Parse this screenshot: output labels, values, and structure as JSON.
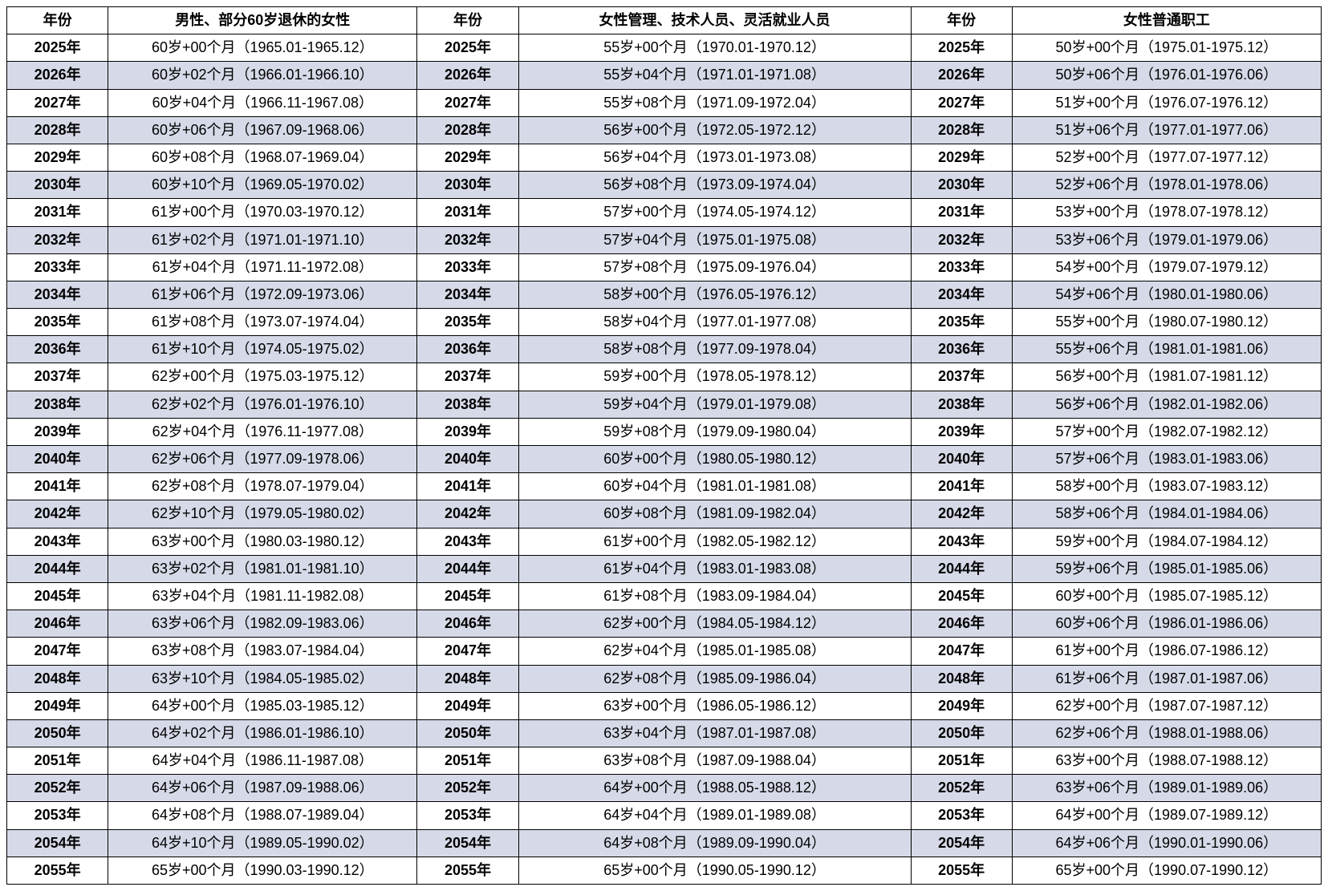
{
  "table": {
    "type": "table",
    "colors": {
      "border": "#000000",
      "bg_even": "#ffffff",
      "bg_odd": "#d6dae8",
      "text": "#000000"
    },
    "font": {
      "family": "Microsoft YaHei",
      "size_pt": 14,
      "header_weight": "bold"
    },
    "headers": [
      "年份",
      "男性、部分60岁退休的女性",
      "年份",
      "女性管理、技术人员、灵活就业人员",
      "年份",
      "女性普通职工"
    ],
    "col_widths_pct": [
      7,
      22,
      7,
      28,
      7,
      22
    ],
    "rows": [
      [
        "2025年",
        "60岁+00个月（1965.01-1965.12）",
        "2025年",
        "55岁+00个月（1970.01-1970.12）",
        "2025年",
        "50岁+00个月（1975.01-1975.12）"
      ],
      [
        "2026年",
        "60岁+02个月（1966.01-1966.10）",
        "2026年",
        "55岁+04个月（1971.01-1971.08）",
        "2026年",
        "50岁+06个月（1976.01-1976.06）"
      ],
      [
        "2027年",
        "60岁+04个月（1966.11-1967.08）",
        "2027年",
        "55岁+08个月（1971.09-1972.04）",
        "2027年",
        "51岁+00个月（1976.07-1976.12）"
      ],
      [
        "2028年",
        "60岁+06个月（1967.09-1968.06）",
        "2028年",
        "56岁+00个月（1972.05-1972.12）",
        "2028年",
        "51岁+06个月（1977.01-1977.06）"
      ],
      [
        "2029年",
        "60岁+08个月（1968.07-1969.04）",
        "2029年",
        "56岁+04个月（1973.01-1973.08）",
        "2029年",
        "52岁+00个月（1977.07-1977.12）"
      ],
      [
        "2030年",
        "60岁+10个月（1969.05-1970.02）",
        "2030年",
        "56岁+08个月（1973.09-1974.04）",
        "2030年",
        "52岁+06个月（1978.01-1978.06）"
      ],
      [
        "2031年",
        "61岁+00个月（1970.03-1970.12）",
        "2031年",
        "57岁+00个月（1974.05-1974.12）",
        "2031年",
        "53岁+00个月（1978.07-1978.12）"
      ],
      [
        "2032年",
        "61岁+02个月（1971.01-1971.10）",
        "2032年",
        "57岁+04个月（1975.01-1975.08）",
        "2032年",
        "53岁+06个月（1979.01-1979.06）"
      ],
      [
        "2033年",
        "61岁+04个月（1971.11-1972.08）",
        "2033年",
        "57岁+08个月（1975.09-1976.04）",
        "2033年",
        "54岁+00个月（1979.07-1979.12）"
      ],
      [
        "2034年",
        "61岁+06个月（1972.09-1973.06）",
        "2034年",
        "58岁+00个月（1976.05-1976.12）",
        "2034年",
        "54岁+06个月（1980.01-1980.06）"
      ],
      [
        "2035年",
        "61岁+08个月（1973.07-1974.04）",
        "2035年",
        "58岁+04个月（1977.01-1977.08）",
        "2035年",
        "55岁+00个月（1980.07-1980.12）"
      ],
      [
        "2036年",
        "61岁+10个月（1974.05-1975.02）",
        "2036年",
        "58岁+08个月（1977.09-1978.04）",
        "2036年",
        "55岁+06个月（1981.01-1981.06）"
      ],
      [
        "2037年",
        "62岁+00个月（1975.03-1975.12）",
        "2037年",
        "59岁+00个月（1978.05-1978.12）",
        "2037年",
        "56岁+00个月（1981.07-1981.12）"
      ],
      [
        "2038年",
        "62岁+02个月（1976.01-1976.10）",
        "2038年",
        "59岁+04个月（1979.01-1979.08）",
        "2038年",
        "56岁+06个月（1982.01-1982.06）"
      ],
      [
        "2039年",
        "62岁+04个月（1976.11-1977.08）",
        "2039年",
        "59岁+08个月（1979.09-1980.04）",
        "2039年",
        "57岁+00个月（1982.07-1982.12）"
      ],
      [
        "2040年",
        "62岁+06个月（1977.09-1978.06）",
        "2040年",
        "60岁+00个月（1980.05-1980.12）",
        "2040年",
        "57岁+06个月（1983.01-1983.06）"
      ],
      [
        "2041年",
        "62岁+08个月（1978.07-1979.04）",
        "2041年",
        "60岁+04个月（1981.01-1981.08）",
        "2041年",
        "58岁+00个月（1983.07-1983.12）"
      ],
      [
        "2042年",
        "62岁+10个月（1979.05-1980.02）",
        "2042年",
        "60岁+08个月（1981.09-1982.04）",
        "2042年",
        "58岁+06个月（1984.01-1984.06）"
      ],
      [
        "2043年",
        "63岁+00个月（1980.03-1980.12）",
        "2043年",
        "61岁+00个月（1982.05-1982.12）",
        "2043年",
        "59岁+00个月（1984.07-1984.12）"
      ],
      [
        "2044年",
        "63岁+02个月（1981.01-1981.10）",
        "2044年",
        "61岁+04个月（1983.01-1983.08）",
        "2044年",
        "59岁+06个月（1985.01-1985.06）"
      ],
      [
        "2045年",
        "63岁+04个月（1981.11-1982.08）",
        "2045年",
        "61岁+08个月（1983.09-1984.04）",
        "2045年",
        "60岁+00个月（1985.07-1985.12）"
      ],
      [
        "2046年",
        "63岁+06个月（1982.09-1983.06）",
        "2046年",
        "62岁+00个月（1984.05-1984.12）",
        "2046年",
        "60岁+06个月（1986.01-1986.06）"
      ],
      [
        "2047年",
        "63岁+08个月（1983.07-1984.04）",
        "2047年",
        "62岁+04个月（1985.01-1985.08）",
        "2047年",
        "61岁+00个月（1986.07-1986.12）"
      ],
      [
        "2048年",
        "63岁+10个月（1984.05-1985.02）",
        "2048年",
        "62岁+08个月（1985.09-1986.04）",
        "2048年",
        "61岁+06个月（1987.01-1987.06）"
      ],
      [
        "2049年",
        "64岁+00个月（1985.03-1985.12）",
        "2049年",
        "63岁+00个月（1986.05-1986.12）",
        "2049年",
        "62岁+00个月（1987.07-1987.12）"
      ],
      [
        "2050年",
        "64岁+02个月（1986.01-1986.10）",
        "2050年",
        "63岁+04个月（1987.01-1987.08）",
        "2050年",
        "62岁+06个月（1988.01-1988.06）"
      ],
      [
        "2051年",
        "64岁+04个月（1986.11-1987.08）",
        "2051年",
        "63岁+08个月（1987.09-1988.04）",
        "2051年",
        "63岁+00个月（1988.07-1988.12）"
      ],
      [
        "2052年",
        "64岁+06个月（1987.09-1988.06）",
        "2052年",
        "64岁+00个月（1988.05-1988.12）",
        "2052年",
        "63岁+06个月（1989.01-1989.06）"
      ],
      [
        "2053年",
        "64岁+08个月（1988.07-1989.04）",
        "2053年",
        "64岁+04个月（1989.01-1989.08）",
        "2053年",
        "64岁+00个月（1989.07-1989.12）"
      ],
      [
        "2054年",
        "64岁+10个月（1989.05-1990.02）",
        "2054年",
        "64岁+08个月（1989.09-1990.04）",
        "2054年",
        "64岁+06个月（1990.01-1990.06）"
      ],
      [
        "2055年",
        "65岁+00个月（1990.03-1990.12）",
        "2055年",
        "65岁+00个月（1990.05-1990.12）",
        "2055年",
        "65岁+00个月（1990.07-1990.12）"
      ]
    ]
  }
}
